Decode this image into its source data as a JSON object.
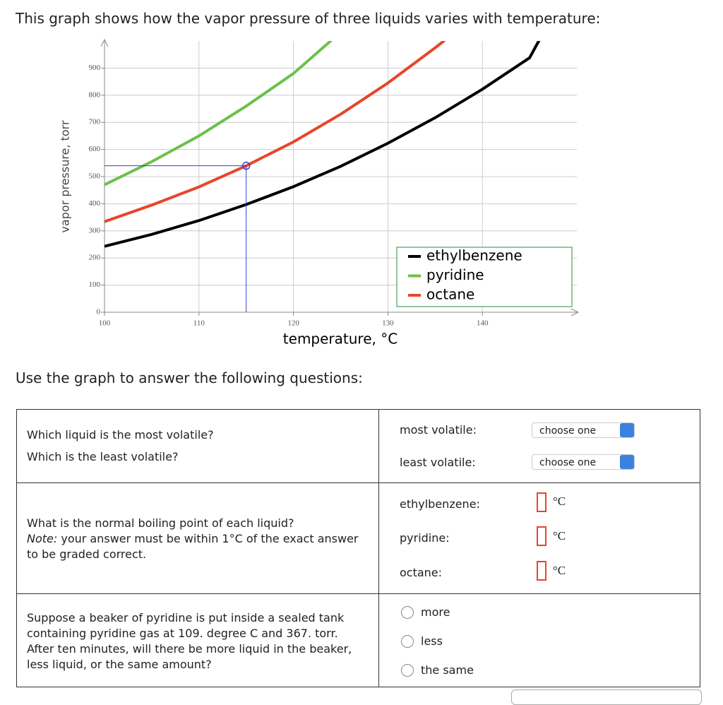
{
  "intro": "This graph shows how the vapor pressure of three liquids varies with temperature:",
  "chart_data": {
    "type": "line",
    "xlabel": "temperature, °C",
    "ylabel": "vapor pressure, torr",
    "xlim": [
      100,
      150
    ],
    "ylim": [
      0,
      1000
    ],
    "xticks": [
      100,
      110,
      120,
      130,
      140
    ],
    "yticks": [
      0,
      100,
      200,
      300,
      400,
      500,
      600,
      700,
      800,
      900
    ],
    "grid": true,
    "legend": "lower right",
    "series": [
      {
        "name": "ethylbenzene",
        "color": "#000000",
        "x": [
          100,
          105,
          110,
          115,
          120,
          125,
          130,
          135,
          140,
          145,
          146
        ],
        "values": [
          243,
          287,
          338,
          397,
          463,
          538,
          623,
          717,
          822,
          938,
          1002
        ]
      },
      {
        "name": "pyridine",
        "color": "#6cc04a",
        "x": [
          100,
          105,
          110,
          115,
          120,
          124
        ],
        "values": [
          470,
          555,
          650,
          760,
          880,
          1002
        ]
      },
      {
        "name": "octane",
        "color": "#e8452c",
        "x": [
          100,
          105,
          110,
          115,
          120,
          125,
          130,
          135,
          136
        ],
        "values": [
          334,
          395,
          462,
          540,
          628,
          730,
          845,
          975,
          1002
        ]
      }
    ],
    "marker": {
      "x": 115,
      "y": 540,
      "color": "#3344cc"
    }
  },
  "prompt": "Use the graph to answer the following questions:",
  "table": {
    "row1": {
      "q1": "Which liquid is the most volatile?",
      "q2": "Which is the least volatile?",
      "label1": "most volatile:",
      "label2": "least volatile:",
      "select1": "choose one",
      "select2": "choose one"
    },
    "row2": {
      "q": "What is the normal boiling point of each liquid?",
      "note": "Note:",
      "note_text": "your answer must be within 1°C of the exact answer to be graded correct.",
      "labels": [
        "ethylbenzene:",
        "pyridine:",
        "octane:"
      ],
      "unit": "°C"
    },
    "row3": {
      "q": "Suppose a beaker of pyridine is put inside a sealed tank containing pyridine gas at 109. degree C and 367. torr. After ten minutes, will there be more liquid in the beaker, less liquid, or the same amount?",
      "options": [
        "more",
        "less",
        "the same"
      ]
    }
  }
}
